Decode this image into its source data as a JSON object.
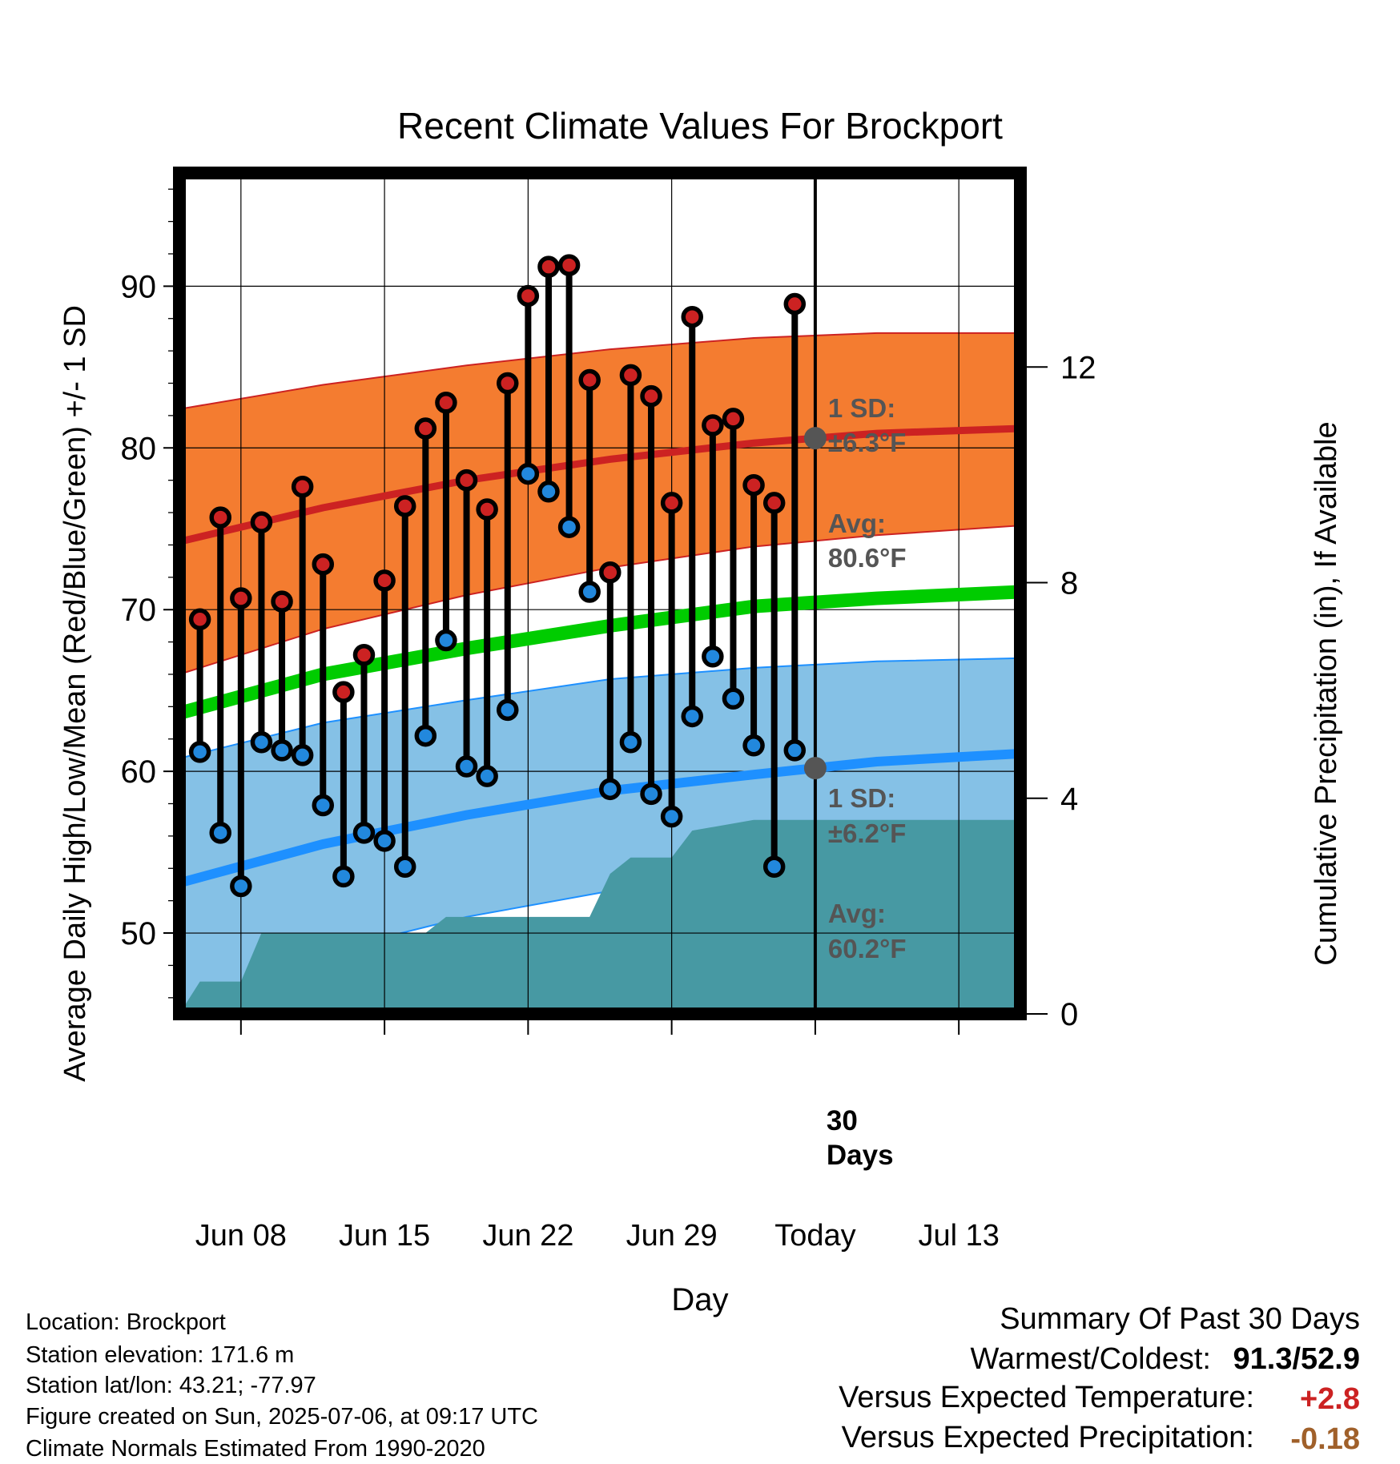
{
  "chart_data": {
    "type": "line",
    "title": "Recent Climate Values For Brockport",
    "xlabel": "Day",
    "ylabel": "Average Daily High/Low/Mean (Red/Blue/Green) +/- 1 SD",
    "y2label": "Cumulative Precipitation (in), If Available",
    "ylim": [
      45,
      97
    ],
    "y2lim": [
      0,
      15.6
    ],
    "xlim": [
      "2025-06-05",
      "2025-07-16"
    ],
    "yticks": [
      50,
      60,
      70,
      80,
      90
    ],
    "y2ticks": [
      0,
      4,
      8,
      12
    ],
    "xticks": [
      {
        "date": "2025-06-08",
        "label": "Jun 08"
      },
      {
        "date": "2025-06-15",
        "label": "Jun 15"
      },
      {
        "date": "2025-06-22",
        "label": "Jun 22"
      },
      {
        "date": "2025-06-29",
        "label": "Jun 29"
      },
      {
        "date": "2025-07-06",
        "label": "Today"
      },
      {
        "date": "2025-07-13",
        "label": "Jul 13"
      }
    ],
    "grid": true,
    "today": "2025-07-06",
    "period_label": "30 Days",
    "days": [
      "2025-06-06",
      "2025-06-07",
      "2025-06-08",
      "2025-06-09",
      "2025-06-10",
      "2025-06-11",
      "2025-06-12",
      "2025-06-13",
      "2025-06-14",
      "2025-06-15",
      "2025-06-16",
      "2025-06-17",
      "2025-06-18",
      "2025-06-19",
      "2025-06-20",
      "2025-06-21",
      "2025-06-22",
      "2025-06-23",
      "2025-06-24",
      "2025-06-25",
      "2025-06-26",
      "2025-06-27",
      "2025-06-28",
      "2025-06-29",
      "2025-06-30",
      "2025-07-01",
      "2025-07-02",
      "2025-07-03",
      "2025-07-04",
      "2025-07-05"
    ],
    "series": [
      {
        "name": "High",
        "color": "#cc2222",
        "values": [
          69.4,
          75.7,
          70.7,
          75.4,
          70.5,
          77.6,
          72.8,
          64.9,
          67.2,
          71.8,
          76.4,
          81.2,
          82.8,
          78.0,
          76.2,
          84.0,
          89.4,
          91.2,
          91.3,
          84.2,
          72.3,
          84.5,
          83.2,
          76.6,
          88.1,
          81.4,
          81.8,
          77.7,
          76.6,
          88.9
        ]
      },
      {
        "name": "Low",
        "color": "#2288dd",
        "values": [
          61.2,
          56.2,
          52.9,
          61.8,
          61.3,
          61.0,
          57.9,
          53.5,
          56.2,
          55.7,
          54.1,
          62.2,
          68.1,
          60.3,
          59.7,
          63.8,
          78.4,
          77.3,
          75.1,
          71.1,
          58.9,
          61.8,
          58.6,
          57.2,
          63.4,
          67.1,
          64.5,
          61.6,
          54.1,
          61.3
        ]
      }
    ],
    "normals": {
      "x": [
        "2025-06-05",
        "2025-06-12",
        "2025-06-19",
        "2025-06-26",
        "2025-07-03",
        "2025-07-09",
        "2025-07-16"
      ],
      "high_mean": [
        74.2,
        76.3,
        78.0,
        79.3,
        80.3,
        80.9,
        81.2
      ],
      "high_sd_upper": [
        82.4,
        83.9,
        85.1,
        86.1,
        86.8,
        87.1,
        87.1
      ],
      "high_sd_lower": [
        66.0,
        68.8,
        70.9,
        72.6,
        73.9,
        74.6,
        75.2
      ],
      "mean": [
        63.6,
        66.0,
        67.6,
        69.0,
        70.2,
        70.7,
        71.1
      ],
      "low_mean": [
        53.1,
        55.5,
        57.3,
        58.8,
        59.8,
        60.6,
        61.1
      ],
      "low_sd_upper": [
        60.8,
        63.0,
        64.4,
        65.7,
        66.4,
        66.8,
        67.0
      ],
      "low_sd_lower": [
        45.3,
        48.8,
        51.0,
        52.6,
        53.8,
        54.5,
        55.0
      ]
    },
    "precipitation": {
      "x": [
        "2025-06-05",
        "2025-06-06",
        "2025-06-08",
        "2025-06-09",
        "2025-06-16",
        "2025-06-17",
        "2025-06-18",
        "2025-06-25",
        "2025-06-26",
        "2025-06-27",
        "2025-06-29",
        "2025-06-30",
        "2025-07-03",
        "2025-07-16"
      ],
      "values": [
        0.0,
        0.6,
        0.6,
        1.5,
        1.5,
        1.5,
        1.8,
        1.8,
        2.6,
        2.9,
        2.9,
        3.4,
        3.6,
        3.6
      ]
    },
    "annotations": [
      {
        "band": "high",
        "sd_label": "1 SD:",
        "sd_value": "±6.3°F",
        "avg_label": "Avg:",
        "avg_value": "80.6°F",
        "avg": 80.6
      },
      {
        "band": "low",
        "sd_label": "1 SD:",
        "sd_value": "±6.2°F",
        "avg_label": "Avg:",
        "avg_value": "60.2°F",
        "avg": 60.2
      }
    ],
    "colors": {
      "high_band": "#f47c30",
      "high_line": "#cc2222",
      "mean_line": "#00cc00",
      "low_band": "#85c1e6",
      "low_line": "#1e90ff",
      "precip": "#4799a3",
      "annotation_text": "#555555"
    }
  },
  "info": {
    "location": "Location: Brockport",
    "elevation": "Station elevation: 171.6 m",
    "latlon": "Station lat/lon: 43.21; -77.97",
    "created": "Figure created on Sun, 2025-07-06, at 09:17 UTC",
    "normals": "Climate Normals Estimated From 1990-2020"
  },
  "summary": {
    "title": "Summary Of Past 30 Days",
    "warm_cold_label": "Warmest/Coldest:",
    "warm_cold_value": "91.3/52.9",
    "temp_label": "Versus Expected Temperature:",
    "temp_value": "+2.8",
    "temp_color": "#cc2222",
    "precip_label": "Versus Expected Precipitation:",
    "precip_value": "-0.18",
    "precip_color": "#a0602a"
  }
}
